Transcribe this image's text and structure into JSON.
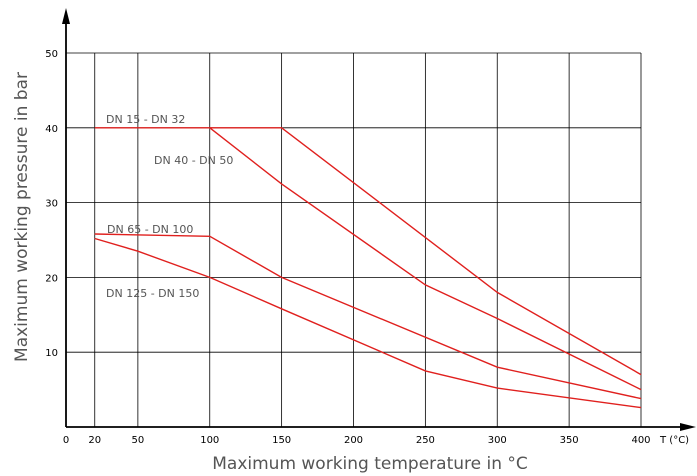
{
  "chart_data": {
    "type": "line",
    "xlabel": "Maximum working temperature in °C",
    "ylabel": "Maximum working pressure in bar",
    "x_unit_label": "T (°C)",
    "xlim": [
      0,
      400
    ],
    "ylim": [
      0,
      50
    ],
    "x_ticks": [
      0,
      20,
      50,
      100,
      150,
      200,
      250,
      300,
      350,
      400
    ],
    "y_ticks": [
      10,
      20,
      30,
      40,
      50
    ],
    "grid": true,
    "line_color": "#e0201e",
    "grid_color": "#000000",
    "series": [
      {
        "name": "DN 15 - DN 32",
        "points": [
          [
            20,
            40
          ],
          [
            150,
            40
          ],
          [
            300,
            18
          ],
          [
            400,
            7
          ]
        ]
      },
      {
        "name": "DN 40 - DN 50",
        "points": [
          [
            100,
            40
          ],
          [
            150,
            32.5
          ],
          [
            250,
            19
          ],
          [
            300,
            14.5
          ],
          [
            400,
            5
          ]
        ]
      },
      {
        "name": "DN 65 - DN 100",
        "points": [
          [
            20,
            25.8
          ],
          [
            100,
            25.5
          ],
          [
            150,
            20
          ],
          [
            300,
            8
          ],
          [
            400,
            3.8
          ]
        ]
      },
      {
        "name": "DN 125 - DN 150",
        "points": [
          [
            20,
            25.2
          ],
          [
            50,
            23.5
          ],
          [
            100,
            20
          ],
          [
            150,
            15.8
          ],
          [
            250,
            7.5
          ],
          [
            300,
            5.2
          ],
          [
            400,
            2.6
          ]
        ]
      }
    ]
  }
}
